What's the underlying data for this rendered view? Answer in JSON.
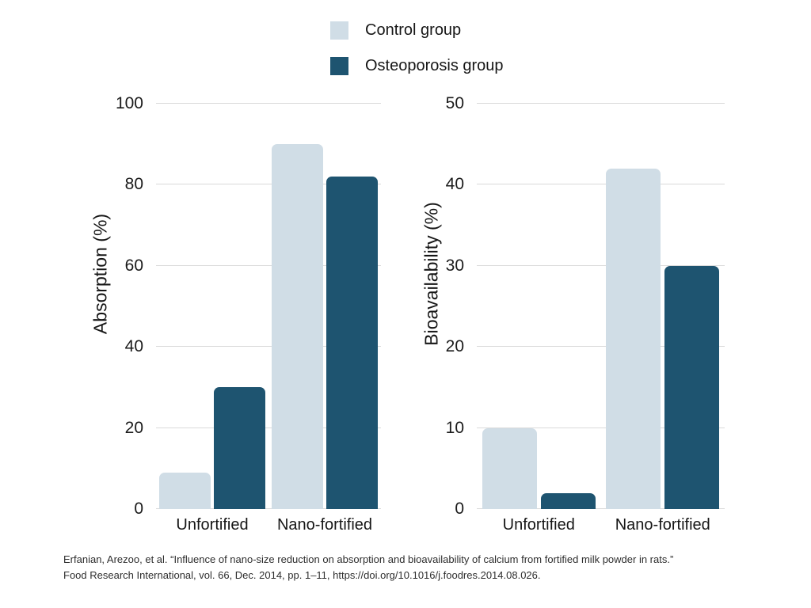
{
  "legend": {
    "items": [
      {
        "label": "Control group",
        "color": "#d0dde6"
      },
      {
        "label": "Osteoporosis group",
        "color": "#1e5470"
      }
    ]
  },
  "chart_data": [
    {
      "type": "bar",
      "title": "",
      "ylabel": "Absorption (%)",
      "xlabel": "",
      "categories": [
        "Unfortified",
        "Nano-fortified"
      ],
      "series": [
        {
          "name": "Control group",
          "color": "#d0dde6",
          "values": [
            9,
            90
          ]
        },
        {
          "name": "Osteoporosis group",
          "color": "#1e5470",
          "values": [
            30,
            82
          ]
        }
      ],
      "ylim": [
        0,
        100
      ],
      "ytick_step": 20,
      "grid": true,
      "legend_position": "top-center"
    },
    {
      "type": "bar",
      "title": "",
      "ylabel": "Bioavailability (%)",
      "xlabel": "",
      "categories": [
        "Unfortified",
        "Nano-fortified"
      ],
      "series": [
        {
          "name": "Control group",
          "color": "#d0dde6",
          "values": [
            10,
            42
          ]
        },
        {
          "name": "Osteoporosis group",
          "color": "#1e5470",
          "values": [
            2,
            30
          ]
        }
      ],
      "ylim": [
        0,
        50
      ],
      "ytick_step": 10,
      "grid": true,
      "legend_position": "top-center"
    }
  ],
  "citation": {
    "line1": "Erfanian, Arezoo, et al. “Influence of nano-size reduction on absorption and bioavailability of calcium from fortified milk powder in rats.”",
    "line2": "Food Research International, vol. 66, Dec. 2014, pp. 1–11, https://doi.org/10.1016/j.foodres.2014.08.026."
  },
  "colors": {
    "gridline": "#dadada",
    "text": "#161616",
    "citation_text": "#2e2e2e",
    "background": "#ffffff"
  }
}
